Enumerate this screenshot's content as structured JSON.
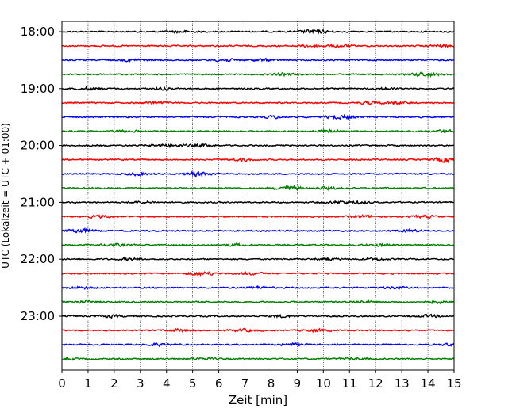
{
  "chart_data": {
    "type": "line",
    "title": "",
    "xlabel": "Zeit  [min]",
    "ylabel": "UTC (Lokalzeit = UTC + 01:00)",
    "xlim": [
      0,
      15
    ],
    "x_ticks": [
      0,
      1,
      2,
      3,
      4,
      5,
      6,
      7,
      8,
      9,
      10,
      11,
      12,
      13,
      14,
      15
    ],
    "y_tick_labels": [
      "18:00",
      "19:00",
      "20:00",
      "21:00",
      "22:00",
      "23:00"
    ],
    "grid": "vertical dotted",
    "trace_interval_minutes": 15,
    "start_time": "18:00",
    "trace_count": 24,
    "trace_colors": [
      "#000000",
      "#ff0000",
      "#0000ff",
      "#007f00"
    ]
  }
}
